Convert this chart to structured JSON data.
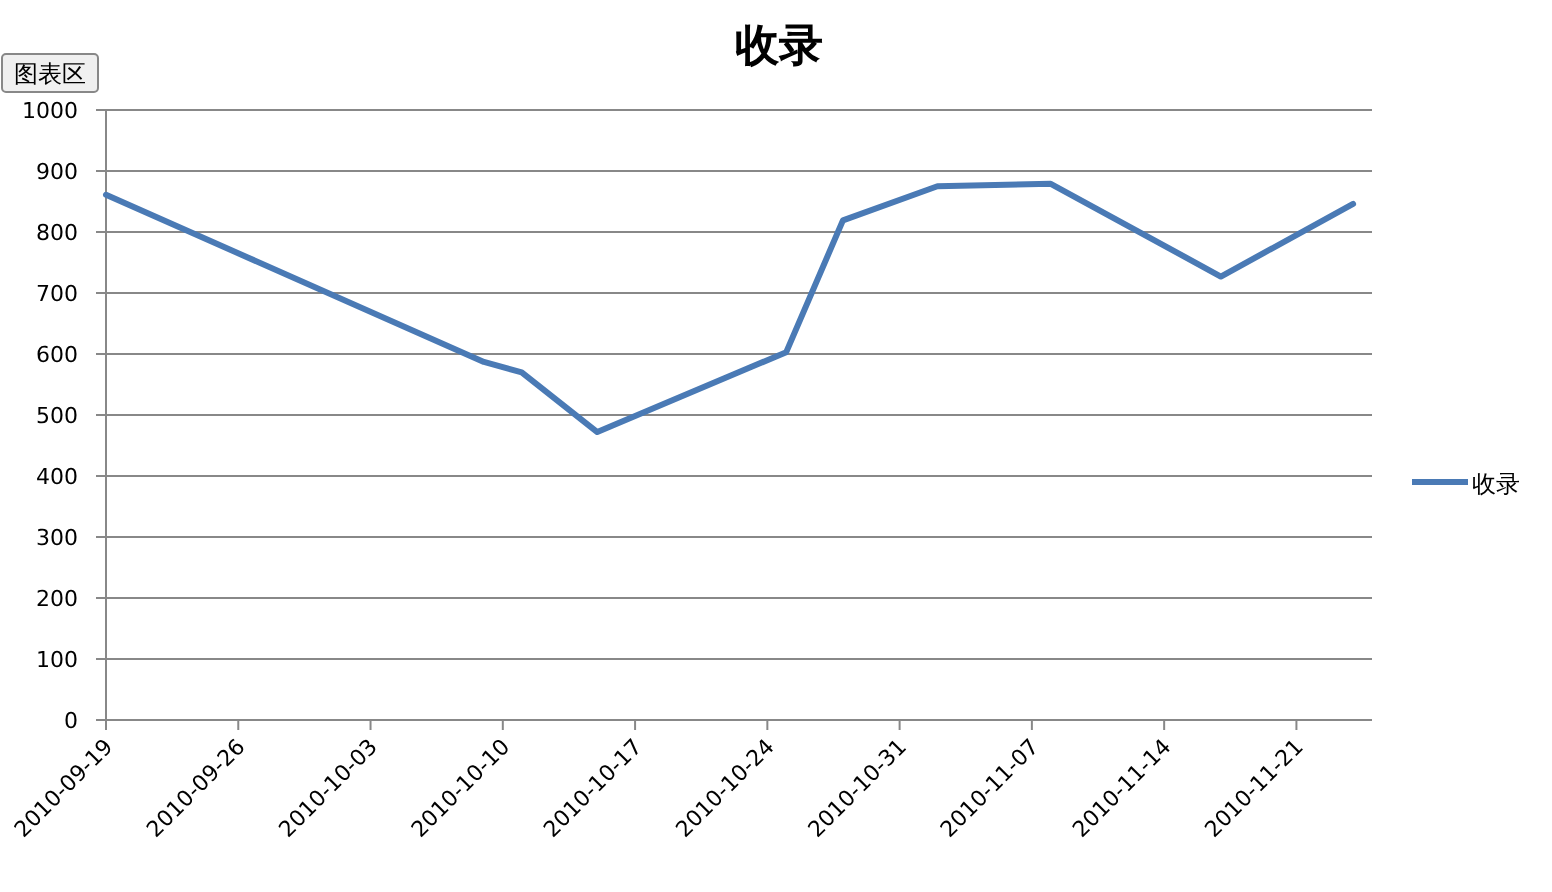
{
  "chart_data": {
    "type": "line",
    "title": "收录",
    "annotations": [
      "图表区"
    ],
    "x": [
      "2010-09-19",
      "2010-10-09",
      "2010-10-11",
      "2010-10-15",
      "2010-10-25",
      "2010-10-28",
      "2010-11-02",
      "2010-11-08",
      "2010-11-17",
      "2010-11-24"
    ],
    "series": [
      {
        "name": "收录",
        "color": "#4a7ab5",
        "values": [
          861,
          587,
          570,
          472,
          603,
          819,
          875,
          879,
          727,
          846
        ]
      }
    ],
    "xlim": [
      "2010-09-19",
      "2010-11-25"
    ],
    "xticks": [
      "2010-09-19",
      "2010-09-26",
      "2010-10-03",
      "2010-10-10",
      "2010-10-17",
      "2010-10-24",
      "2010-10-31",
      "2010-11-07",
      "2010-11-14",
      "2010-11-21"
    ],
    "ylim": [
      0,
      1000
    ],
    "yticks": [
      0,
      100,
      200,
      300,
      400,
      500,
      600,
      700,
      800,
      900,
      1000
    ],
    "grid": "y",
    "legend": "right",
    "marker": "none",
    "line_style": "solid"
  }
}
